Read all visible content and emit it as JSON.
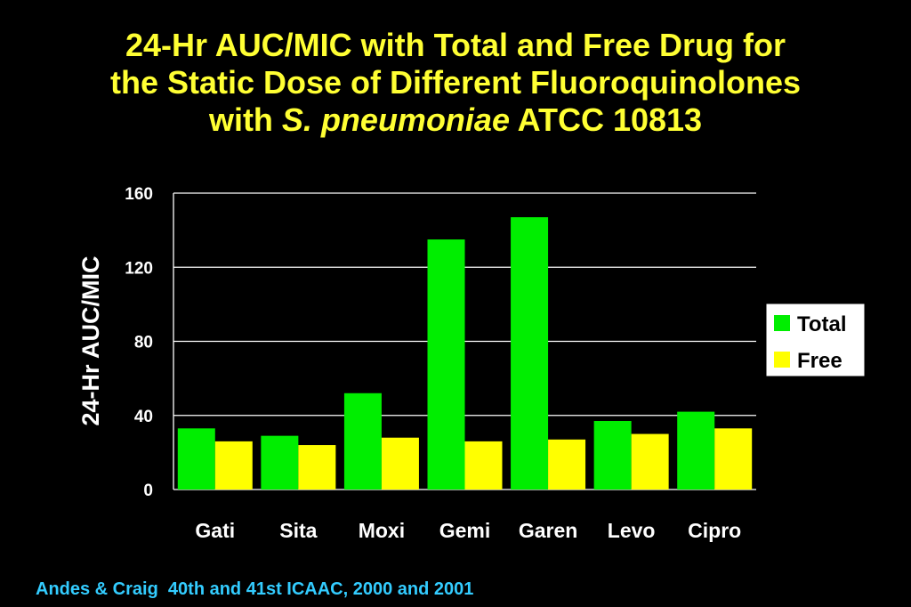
{
  "title": {
    "line1": "24-Hr AUC/MIC with Total and Free Drug for",
    "line2": "the Static Dose of Different Fluoroquinolones",
    "line3_prefix": "with ",
    "line3_italic": "S. pneumoniae",
    "line3_suffix": " ATCC 10813"
  },
  "footer": "Andes & Craig  40th and 41st ICAAC, 2000 and 2001",
  "colors": {
    "background": "#000000",
    "title": "#ffff33",
    "total": "#00ee00",
    "free": "#ffff00",
    "footer": "#33ccff"
  },
  "chart_data": {
    "type": "bar",
    "categories": [
      "Gati",
      "Sita",
      "Moxi",
      "Gemi",
      "Garen",
      "Levo",
      "Cipro"
    ],
    "series": [
      {
        "name": "Total",
        "values": [
          33,
          29,
          52,
          135,
          147,
          37,
          42
        ]
      },
      {
        "name": "Free",
        "values": [
          26,
          24,
          28,
          26,
          27,
          30,
          33
        ]
      }
    ],
    "ylabel": "24-Hr AUC/MIC",
    "xlabel": "",
    "ylim": [
      0,
      160
    ],
    "yticks": [
      0,
      40,
      80,
      120,
      160
    ],
    "grid": true,
    "legend": "right"
  }
}
